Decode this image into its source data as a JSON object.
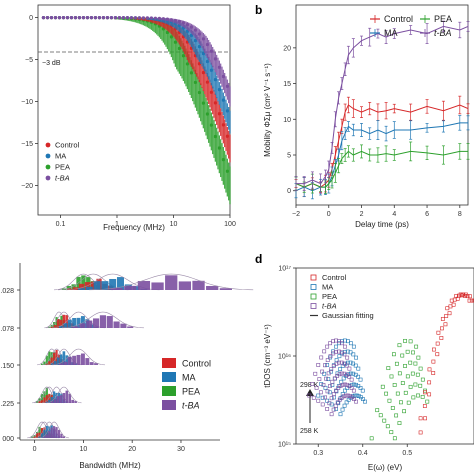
{
  "colors": {
    "Control": "#d62728",
    "MA": "#1f77b4",
    "PEA": "#2ca02c",
    "t-BA": "#7b4fa0"
  },
  "panels": {
    "a": {
      "letter": ""
    },
    "b": {
      "letter": "b"
    },
    "c": {
      "letter": ""
    },
    "d": {
      "letter": "d"
    }
  },
  "chart_data": [
    {
      "panel": "a",
      "type": "line",
      "xlabel": "Frequency (MHz)",
      "ylabel": "",
      "xscale": "log",
      "xlim": [
        0.04,
        100
      ],
      "ylim": [
        -23.5,
        1.5
      ],
      "xticks": [
        "0.1",
        "1",
        "10",
        "100"
      ],
      "yticks": [
        "0",
        "-5",
        "-10",
        "-15",
        "-20"
      ],
      "grid": false,
      "annotation": "−3 dB",
      "reference_line": -3,
      "legend": "bottom-left",
      "series": [
        {
          "name": "Control",
          "color": "#d62728",
          "knee": 18,
          "band": 2.2
        },
        {
          "name": "MA",
          "color": "#1f77b4",
          "knee": 26,
          "band": 1.8
        },
        {
          "name": "PEA",
          "color": "#2ca02c",
          "knee": 11,
          "band": 3.0
        },
        {
          "name": "t-BA",
          "color": "#7b4fa0",
          "knee": 38,
          "band": 1.6
        }
      ]
    },
    {
      "panel": "b",
      "type": "line",
      "xlabel": "Delay time (ps)",
      "ylabel": "Mobility ΦΣμ (cm² V⁻¹ s⁻¹)",
      "xlim": [
        -2,
        8.5
      ],
      "ylim": [
        -2,
        26
      ],
      "xticks": [
        "-2",
        "0",
        "2",
        "4",
        "6",
        "8"
      ],
      "yticks": [
        "0",
        "5",
        "10",
        "15",
        "20"
      ],
      "legend": "top",
      "series": [
        {
          "name": "Control",
          "color": "#d62728",
          "x": [
            -2,
            -1.5,
            -1,
            -0.5,
            -0.2,
            0,
            0.2,
            0.4,
            0.6,
            0.8,
            1.0,
            1.2,
            1.5,
            2,
            2.5,
            3,
            3.5,
            4,
            5,
            6,
            7,
            8,
            8.5
          ],
          "y": [
            1,
            0.5,
            1,
            0.5,
            1,
            1.5,
            3,
            5,
            7,
            9,
            11,
            12,
            11.5,
            11,
            11.5,
            11,
            11.2,
            11.5,
            11,
            11.8,
            11.2,
            12,
            11.5
          ]
        },
        {
          "name": "MA",
          "color": "#1f77b4",
          "x": [
            -2,
            -1.5,
            -1,
            -0.5,
            -0.2,
            0,
            0.2,
            0.4,
            0.6,
            0.8,
            1.0,
            1.2,
            1.5,
            2,
            2.5,
            3,
            3.5,
            4,
            5,
            6,
            7,
            8,
            8.5
          ],
          "y": [
            0,
            0.5,
            0,
            0.5,
            0.5,
            1,
            2,
            3.5,
            5,
            7,
            8,
            9,
            8.5,
            8.5,
            8,
            8.5,
            8,
            8.5,
            8.5,
            8.8,
            9,
            9.5,
            9.5
          ]
        },
        {
          "name": "PEA",
          "color": "#2ca02c",
          "x": [
            -2,
            -1.5,
            -1,
            -0.5,
            -0.2,
            0,
            0.2,
            0.4,
            0.6,
            0.8,
            1.0,
            1.2,
            1.5,
            2,
            2.5,
            3,
            3.5,
            4,
            5,
            6,
            7,
            8,
            8.5
          ],
          "y": [
            1,
            0.5,
            1,
            0.5,
            0.5,
            1,
            1.5,
            2.5,
            3.5,
            4.5,
            5,
            5.5,
            5,
            5.5,
            5,
            5,
            5.2,
            5,
            5.5,
            5.3,
            5,
            5.5,
            5.5
          ]
        },
        {
          "name": "t-BA",
          "color": "#7b4fa0",
          "x": [
            -2,
            -1.5,
            -1,
            -0.5,
            -0.2,
            0,
            0.2,
            0.4,
            0.6,
            0.8,
            1.0,
            1.2,
            1.5,
            2,
            2.5,
            3,
            3.5,
            4,
            5,
            6,
            7,
            8,
            8.5
          ],
          "y": [
            1,
            1,
            1.5,
            1,
            2,
            3,
            6,
            10,
            13,
            15,
            17,
            19,
            20,
            21,
            21.5,
            22,
            21.5,
            22,
            22.5,
            22,
            23,
            22.5,
            23
          ]
        }
      ]
    },
    {
      "panel": "c",
      "type": "bar",
      "xlabel": "Bandwidth (MHz)",
      "xlim": [
        -3,
        38
      ],
      "xticks": [
        "0",
        "10",
        "20",
        "30"
      ],
      "rows": [
        ".028",
        ".078",
        ".150",
        ".225",
        "000"
      ],
      "legend": "bottom-right",
      "series_names": [
        "Control",
        "MA",
        "PEA",
        "t-BA"
      ],
      "row_centers": [
        {
          "Control": 12,
          "MA": 16,
          "PEA": 10,
          "t-BA": 28
        },
        {
          "Control": 6,
          "MA": 9,
          "PEA": 5,
          "t-BA": 14
        },
        {
          "Control": 4.5,
          "MA": 6,
          "PEA": 3.5,
          "t-BA": 9
        },
        {
          "Control": 3,
          "MA": 4.5,
          "PEA": 2.5,
          "t-BA": 6
        },
        {
          "Control": 2,
          "MA": 3,
          "PEA": 1.5,
          "t-BA": 4
        }
      ]
    },
    {
      "panel": "d",
      "type": "scatter",
      "xlabel": "E(ω) (eV)",
      "ylabel": "tDOS (cm⁻³ eV⁻¹)",
      "yscale": "log",
      "xlim": [
        0.25,
        0.65
      ],
      "ylim": [
        1000000000000000.0,
        1e+17
      ],
      "xticks": [
        "0.3",
        "0.4",
        "0.5"
      ],
      "yticks": [
        "10¹⁵",
        "10¹⁶",
        "10¹⁷"
      ],
      "legend": "top-left",
      "legend_entries": [
        "Control",
        "MA",
        "PEA",
        "t-BA",
        "Gaussian fitting"
      ],
      "temp_top": "298 K",
      "temp_bottom": "258 K"
    }
  ]
}
